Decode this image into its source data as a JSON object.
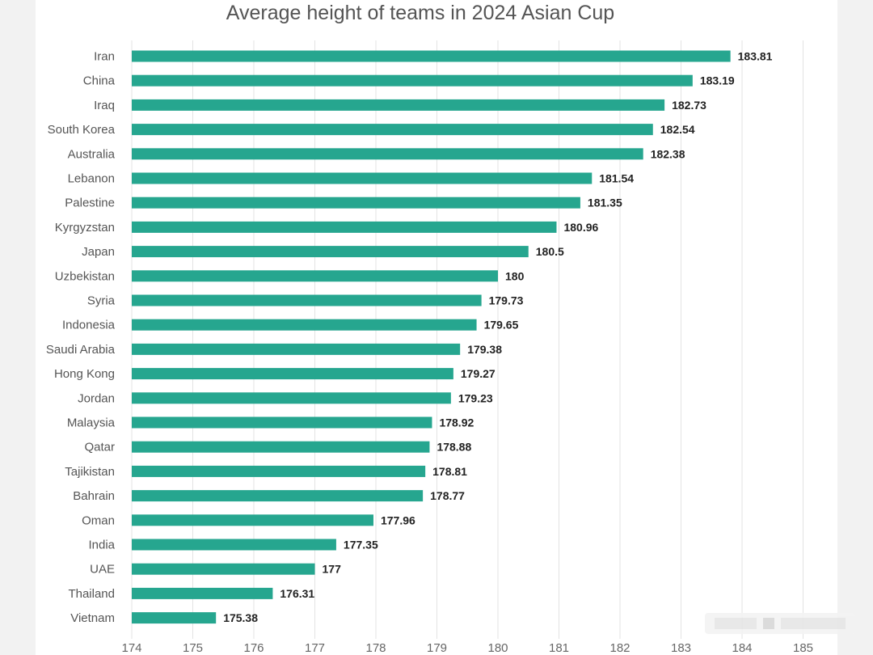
{
  "chart_data": {
    "type": "bar",
    "orientation": "horizontal",
    "title": "Average height of teams in 2024 Asian Cup",
    "xlabel": "",
    "ylabel": "",
    "xlim": [
      174,
      185
    ],
    "x_ticks": [
      "174",
      "175",
      "176",
      "177",
      "178",
      "179",
      "180",
      "181",
      "182",
      "183",
      "184",
      "185"
    ],
    "grid": "vertical",
    "bar_color": "#26a68f",
    "categories": [
      "Iran",
      "China",
      "Iraq",
      "South Korea",
      "Australia",
      "Lebanon",
      "Palestine",
      "Kyrgyzstan",
      "Japan",
      "Uzbekistan",
      "Syria",
      "Indonesia",
      "Saudi Arabia",
      "Hong Kong",
      "Jordan",
      "Malaysia",
      "Qatar",
      "Tajikistan",
      "Bahrain",
      "Oman",
      "India",
      "UAE",
      "Thailand",
      "Vietnam"
    ],
    "values": [
      183.81,
      183.19,
      182.73,
      182.54,
      182.38,
      181.54,
      181.35,
      180.96,
      180.5,
      180,
      179.73,
      179.65,
      179.38,
      179.27,
      179.23,
      178.92,
      178.88,
      178.81,
      178.77,
      177.96,
      177.35,
      177,
      176.31,
      175.38
    ],
    "data_labels": [
      "183.81",
      "183.19",
      "182.73",
      "182.54",
      "182.38",
      "181.54",
      "181.35",
      "180.96",
      "180.5",
      "180",
      "179.73",
      "179.65",
      "179.38",
      "179.27",
      "179.23",
      "178.92",
      "178.88",
      "178.81",
      "178.77",
      "177.96",
      "177.35",
      "177",
      "176.31",
      "175.38"
    ]
  }
}
